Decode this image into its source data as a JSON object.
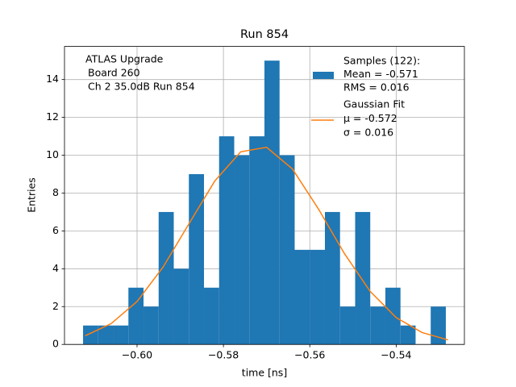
{
  "chart_data": {
    "type": "histogram",
    "title": "Run 854",
    "xlabel": "time [ns]",
    "ylabel": "Entries",
    "bins": [
      -0.6125,
      -0.609,
      -0.6055,
      -0.602,
      -0.5985,
      -0.595,
      -0.5915,
      -0.588,
      -0.5845,
      -0.581,
      -0.5775,
      -0.574,
      -0.5705,
      -0.567,
      -0.5635,
      -0.56,
      -0.5565,
      -0.553,
      -0.5495,
      -0.546,
      -0.5425,
      -0.539,
      -0.5355,
      -0.532,
      -0.5285
    ],
    "series": [
      {
        "name": [
          "Samples (122):",
          "Mean = -0.571",
          "RMS = 0.016"
        ],
        "color": "#1f77b4",
        "values": [
          1,
          1,
          1,
          3,
          2,
          7,
          4,
          9,
          3,
          11,
          10,
          11,
          15,
          10,
          5,
          5,
          7,
          2,
          7,
          2,
          3,
          1,
          0,
          2
        ]
      },
      {
        "name": [
          "Gaussian Fit",
          "μ = -0.572",
          "σ = 0.016"
        ],
        "color": "#ff7f0e",
        "x": [
          -0.612,
          -0.606,
          -0.6,
          -0.594,
          -0.588,
          -0.582,
          -0.576,
          -0.57,
          -0.564,
          -0.558,
          -0.552,
          -0.546,
          -0.54,
          -0.534,
          -0.528
        ],
        "values": [
          0.46,
          1.1,
          2.27,
          4.08,
          6.37,
          8.64,
          10.18,
          10.42,
          9.27,
          7.16,
          4.81,
          2.8,
          1.42,
          0.63,
          0.24
        ]
      }
    ],
    "annotation": [
      "ATLAS Upgrade",
      "Board 260",
      "Ch 2 35.0dB  Run 854"
    ],
    "xlim": [
      -0.6168,
      -0.5242
    ],
    "xticks": [
      {
        "value": -0.6,
        "label": "−0.60"
      },
      {
        "value": -0.58,
        "label": "−0.58"
      },
      {
        "value": -0.56,
        "label": "−0.56"
      },
      {
        "value": -0.54,
        "label": "−0.54"
      }
    ],
    "ylim": [
      0,
      15.75
    ],
    "yticks": [
      0,
      2,
      4,
      6,
      8,
      10,
      12,
      14
    ],
    "grid": true
  }
}
